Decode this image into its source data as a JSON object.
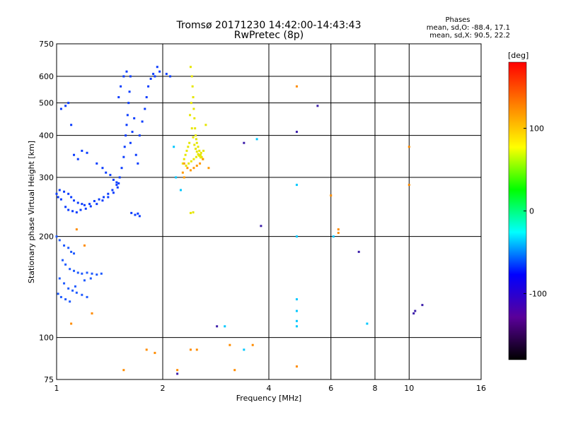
{
  "chart_data": {
    "type": "scatter",
    "title_lines": [
      "Tromsø 20171230 14:42:00-14:43:43",
      "RwPretec (8p)"
    ],
    "stats": {
      "header": "Phases",
      "line1": "mean, sd,O: -88.4, 17.1",
      "line2": "mean, sd,X:  90.5, 22.2"
    },
    "xlabel": "Frequency [MHz]",
    "ylabel": "Stationary phase Virtual Height [km]",
    "x_scale": "log2",
    "y_scale": "log",
    "xlim": [
      1,
      16
    ],
    "ylim": [
      75,
      750
    ],
    "x_ticks": [
      1,
      2,
      4,
      6,
      8,
      10,
      16
    ],
    "y_ticks": [
      75,
      100,
      200,
      300,
      400,
      500,
      600,
      750
    ],
    "colorbar": {
      "label": "[deg]",
      "range": [
        -180,
        180
      ],
      "ticks": [
        -100,
        0,
        100
      ],
      "colors": [
        "#000000",
        "#5a009a",
        "#0000ff",
        "#00ffff",
        "#00ff00",
        "#ffff00",
        "#ff8000",
        "#ff0000"
      ]
    },
    "grid": true,
    "clusters": [
      {
        "name": "O-trace upper",
        "color": "#0a3cff",
        "points": [
          [
            1.02,
            275
          ],
          [
            1.05,
            272
          ],
          [
            1.08,
            268
          ],
          [
            1.1,
            262
          ],
          [
            1.12,
            256
          ],
          [
            1.15,
            252
          ],
          [
            1.18,
            250
          ],
          [
            1.2,
            248
          ],
          [
            1.24,
            250
          ],
          [
            1.28,
            255
          ],
          [
            1.32,
            258
          ],
          [
            1.36,
            262
          ],
          [
            1.4,
            268
          ],
          [
            1.44,
            275
          ],
          [
            1.48,
            285
          ],
          [
            1.51,
            300
          ],
          [
            1.53,
            320
          ],
          [
            1.55,
            345
          ],
          [
            1.56,
            370
          ],
          [
            1.57,
            400
          ],
          [
            1.58,
            430
          ],
          [
            1.59,
            460
          ],
          [
            1.6,
            500
          ],
          [
            1.61,
            540
          ],
          [
            1.62,
            600
          ],
          [
            1.58,
            620
          ],
          [
            1.55,
            600
          ],
          [
            1.52,
            560
          ],
          [
            1.5,
            520
          ],
          [
            1.62,
            380
          ],
          [
            1.64,
            410
          ],
          [
            1.66,
            450
          ],
          [
            1.68,
            350
          ],
          [
            1.7,
            330
          ],
          [
            1.72,
            400
          ],
          [
            1.75,
            440
          ],
          [
            1.78,
            480
          ],
          [
            1.8,
            520
          ],
          [
            1.82,
            560
          ],
          [
            1.85,
            590
          ],
          [
            1.88,
            610
          ],
          [
            1.9,
            600
          ],
          [
            1.93,
            640
          ],
          [
            1.96,
            620
          ],
          [
            2.05,
            610
          ],
          [
            2.1,
            600
          ],
          [
            1.03,
            480
          ],
          [
            1.06,
            490
          ],
          [
            1.08,
            500
          ],
          [
            1.1,
            430
          ],
          [
            1.12,
            350
          ],
          [
            1.15,
            340
          ],
          [
            1.18,
            360
          ],
          [
            1.22,
            355
          ],
          [
            1.3,
            330
          ],
          [
            1.35,
            320
          ],
          [
            1.38,
            310
          ],
          [
            1.42,
            305
          ],
          [
            1.45,
            295
          ],
          [
            1.48,
            290
          ],
          [
            1.5,
            288
          ],
          [
            1.0,
            268
          ],
          [
            1.01,
            262
          ],
          [
            1.03,
            258
          ],
          [
            1.06,
            245
          ],
          [
            1.08,
            240
          ],
          [
            1.11,
            238
          ],
          [
            1.14,
            236
          ],
          [
            1.17,
            240
          ],
          [
            1.21,
            242
          ],
          [
            1.25,
            246
          ],
          [
            1.3,
            250
          ],
          [
            1.35,
            256
          ],
          [
            1.4,
            262
          ],
          [
            1.45,
            270
          ],
          [
            1.49,
            280
          ],
          [
            1.63,
            235
          ],
          [
            1.67,
            232
          ],
          [
            1.7,
            234
          ],
          [
            1.72,
            230
          ]
        ]
      },
      {
        "name": "O-trace lower",
        "color": "#1e5aff",
        "points": [
          [
            1.0,
            200
          ],
          [
            1.02,
            195
          ],
          [
            1.05,
            188
          ],
          [
            1.08,
            185
          ],
          [
            1.1,
            180
          ],
          [
            1.12,
            178
          ],
          [
            1.04,
            170
          ],
          [
            1.06,
            165
          ],
          [
            1.09,
            160
          ],
          [
            1.12,
            158
          ],
          [
            1.15,
            156
          ],
          [
            1.18,
            155
          ],
          [
            1.22,
            156
          ],
          [
            1.26,
            155
          ],
          [
            1.3,
            154
          ],
          [
            1.34,
            155
          ],
          [
            1.02,
            150
          ],
          [
            1.05,
            145
          ],
          [
            1.08,
            140
          ],
          [
            1.11,
            138
          ],
          [
            1.14,
            136
          ],
          [
            1.18,
            134
          ],
          [
            1.22,
            132
          ],
          [
            1.01,
            135
          ],
          [
            1.03,
            132
          ],
          [
            1.06,
            130
          ],
          [
            1.09,
            128
          ],
          [
            1.13,
            142
          ],
          [
            1.2,
            148
          ],
          [
            1.25,
            150
          ]
        ]
      },
      {
        "name": "X-trace",
        "color": "#e6e600",
        "points": [
          [
            2.4,
            640
          ],
          [
            2.42,
            600
          ],
          [
            2.43,
            560
          ],
          [
            2.44,
            520
          ],
          [
            2.45,
            480
          ],
          [
            2.46,
            450
          ],
          [
            2.47,
            420
          ],
          [
            2.48,
            400
          ],
          [
            2.49,
            390
          ],
          [
            2.5,
            380
          ],
          [
            2.52,
            370
          ],
          [
            2.54,
            360
          ],
          [
            2.56,
            350
          ],
          [
            2.58,
            345
          ],
          [
            2.6,
            340
          ],
          [
            2.38,
            380
          ],
          [
            2.36,
            370
          ],
          [
            2.34,
            360
          ],
          [
            2.32,
            350
          ],
          [
            2.3,
            340
          ],
          [
            2.28,
            330
          ],
          [
            2.33,
            325
          ],
          [
            2.37,
            330
          ],
          [
            2.41,
            335
          ],
          [
            2.45,
            340
          ],
          [
            2.49,
            345
          ],
          [
            2.53,
            350
          ],
          [
            2.57,
            355
          ],
          [
            2.61,
            360
          ],
          [
            2.65,
            430
          ],
          [
            2.39,
            460
          ],
          [
            2.41,
            500
          ],
          [
            2.42,
            420
          ],
          [
            2.44,
            395
          ],
          [
            2.46,
            375
          ],
          [
            2.48,
            365
          ],
          [
            2.5,
            358
          ],
          [
            2.52,
            352
          ],
          [
            2.54,
            348
          ],
          [
            2.56,
            344
          ],
          [
            2.4,
            235
          ],
          [
            2.44,
            236
          ]
        ]
      },
      {
        "name": "X-trace orange",
        "color": "#ff9a00",
        "points": [
          [
            2.3,
            330
          ],
          [
            2.35,
            320
          ],
          [
            2.4,
            315
          ],
          [
            2.45,
            320
          ],
          [
            2.5,
            325
          ],
          [
            2.55,
            330
          ],
          [
            2.6,
            340
          ],
          [
            2.7,
            320
          ],
          [
            2.3,
            300
          ],
          [
            2.28,
            310
          ]
        ]
      },
      {
        "name": "scattered",
        "color": "#ff8c00",
        "points": [
          [
            1.1,
            110
          ],
          [
            1.14,
            210
          ],
          [
            1.2,
            188
          ],
          [
            1.26,
            118
          ],
          [
            1.55,
            80
          ],
          [
            1.8,
            92
          ],
          [
            1.9,
            90
          ],
          [
            2.2,
            80
          ],
          [
            2.4,
            92
          ],
          [
            2.5,
            92
          ],
          [
            3.1,
            95
          ],
          [
            3.6,
            95
          ],
          [
            3.2,
            80
          ],
          [
            4.8,
            560
          ],
          [
            4.8,
            82
          ],
          [
            6.0,
            265
          ],
          [
            6.3,
            210
          ],
          [
            6.3,
            205
          ],
          [
            10.0,
            370
          ],
          [
            10.0,
            285
          ]
        ]
      },
      {
        "name": "scattered blue",
        "color": "#00c8ff",
        "points": [
          [
            2.25,
            275
          ],
          [
            3.7,
            390
          ],
          [
            4.8,
            285
          ],
          [
            4.8,
            200
          ],
          [
            4.8,
            130
          ],
          [
            4.8,
            120
          ],
          [
            4.8,
            108
          ],
          [
            4.8,
            112
          ],
          [
            2.15,
            370
          ],
          [
            2.18,
            300
          ],
          [
            3.4,
            92
          ],
          [
            3.0,
            108
          ],
          [
            6.1,
            200
          ],
          [
            7.6,
            110
          ]
        ]
      },
      {
        "name": "scattered dark",
        "color": "#3c1eaa",
        "points": [
          [
            2.2,
            78
          ],
          [
            2.85,
            108
          ],
          [
            3.4,
            380
          ],
          [
            3.8,
            215
          ],
          [
            4.8,
            410
          ],
          [
            5.5,
            490
          ],
          [
            7.2,
            180
          ],
          [
            10.4,
            120
          ],
          [
            10.9,
            125
          ],
          [
            10.3,
            118
          ]
        ]
      }
    ]
  }
}
